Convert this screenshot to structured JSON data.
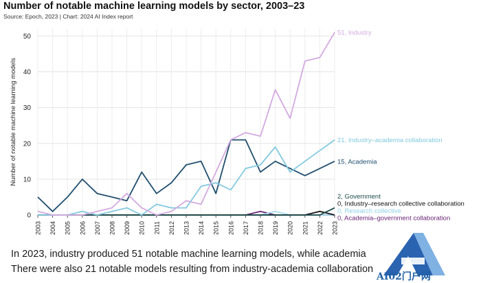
{
  "title": "Number of notable machine learning models by sector, 2003–23",
  "subtitle": "Source: Epoch, 2023 | Chart: 2024 AI Index report",
  "captions": [
    "In 2023, industry produced 51 notable machine learning models, while academia",
    "There were also 21 notable models resulting from industry-academia collaboration"
  ],
  "watermark": {
    "text": "AI02门户网"
  },
  "chart_data": {
    "type": "line",
    "ylabel": "Number of notable machine learning models",
    "xlabel": "",
    "ylim": [
      0,
      52
    ],
    "yticks": [
      0,
      10,
      20,
      30,
      40,
      50
    ],
    "grid": true,
    "legend": "end-labels",
    "x": [
      "2003",
      "2004",
      "2005",
      "2006",
      "2007",
      "2008",
      "2009",
      "2010",
      "2011",
      "2012",
      "2013",
      "2014",
      "2015",
      "2016",
      "2017",
      "2018",
      "2019",
      "2020",
      "2021",
      "2022",
      "2023"
    ],
    "series": [
      {
        "name": "Industry",
        "end_label": "51, Industry",
        "color": "#d3a9e0",
        "values": [
          1,
          0,
          0,
          0,
          1,
          2,
          6,
          2,
          0,
          1,
          4,
          3,
          12,
          21,
          23,
          22,
          35,
          27,
          43,
          44,
          51
        ]
      },
      {
        "name": "Industry–academia collaboration",
        "end_label": "21, Industry–academia collaboration",
        "color": "#82c9df",
        "values": [
          0,
          0,
          0,
          1,
          0,
          1,
          2,
          0,
          3,
          2,
          2,
          8,
          9,
          7,
          13,
          14,
          19,
          12,
          15,
          18,
          21
        ]
      },
      {
        "name": "Academia",
        "end_label": "15, Academia",
        "color": "#1f4e6e",
        "values": [
          5,
          1,
          5,
          10,
          6,
          5,
          4,
          12,
          6,
          9,
          14,
          15,
          6,
          21,
          21,
          12,
          15,
          13,
          11,
          13,
          15
        ]
      },
      {
        "name": "Government",
        "end_label": "2, Government",
        "color": "#1c4a4a",
        "values": [
          0,
          0,
          0,
          0,
          0,
          0,
          0,
          0,
          0,
          0,
          0,
          0,
          0,
          0,
          0,
          0,
          0,
          0,
          0,
          0,
          2
        ]
      },
      {
        "name": "Industry–research collective collaboration",
        "end_label": "0, Industry–research collective collaboration",
        "color": "#111111",
        "values": [
          0,
          0,
          0,
          0,
          0,
          0,
          0,
          0,
          0,
          0,
          0,
          0,
          0,
          0,
          0,
          0,
          0,
          0,
          0,
          1,
          0
        ]
      },
      {
        "name": "Research collective",
        "end_label": "0, Research collective",
        "color": "#a8dcee",
        "values": [
          0,
          0,
          0,
          0,
          0,
          0,
          0,
          0,
          0,
          0,
          0,
          0,
          0,
          0,
          0,
          0,
          1,
          0,
          0,
          0,
          0
        ]
      },
      {
        "name": "Academia–government collaboration",
        "end_label": "0, Academia–government collaboration",
        "color": "#6a2478",
        "values": [
          0,
          0,
          0,
          0,
          0,
          0,
          0,
          0,
          0,
          0,
          0,
          0,
          0,
          0,
          0,
          1,
          0,
          0,
          0,
          0,
          0
        ]
      }
    ]
  }
}
